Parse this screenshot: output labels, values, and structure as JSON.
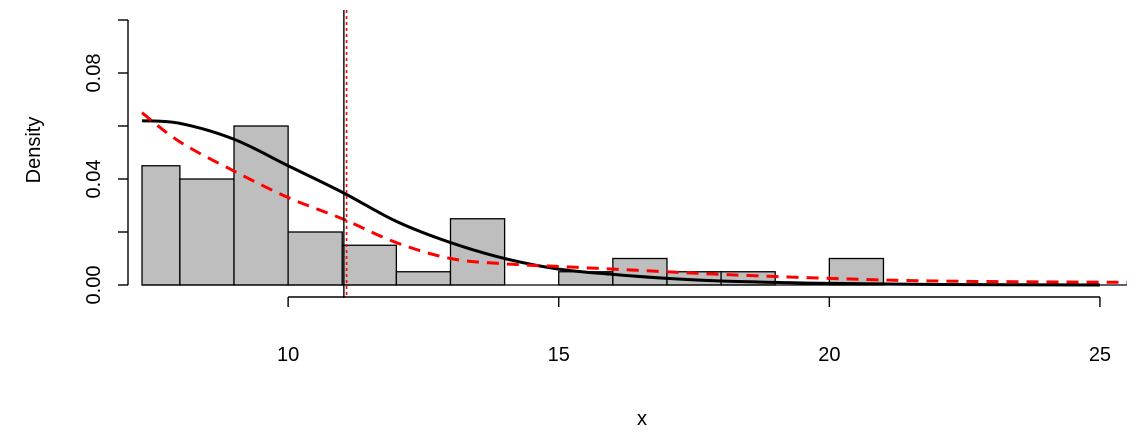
{
  "chart_data": {
    "type": "bar",
    "title": "",
    "xlabel": "x",
    "ylabel": "Density",
    "xlim": [
      7.3,
      25.5
    ],
    "ylim": [
      0,
      0.1
    ],
    "grid": false,
    "bins": [
      {
        "x0": 7.3,
        "x1": 8,
        "density": 0.045
      },
      {
        "x0": 8,
        "x1": 9,
        "density": 0.04
      },
      {
        "x0": 9,
        "x1": 10,
        "density": 0.06
      },
      {
        "x0": 10,
        "x1": 11,
        "density": 0.02
      },
      {
        "x0": 11,
        "x1": 12,
        "density": 0.015
      },
      {
        "x0": 12,
        "x1": 13,
        "density": 0.005
      },
      {
        "x0": 13,
        "x1": 14,
        "density": 0.025
      },
      {
        "x0": 14,
        "x1": 15,
        "density": 0.0
      },
      {
        "x0": 15,
        "x1": 16,
        "density": 0.005
      },
      {
        "x0": 16,
        "x1": 17,
        "density": 0.01
      },
      {
        "x0": 17,
        "x1": 18,
        "density": 0.005
      },
      {
        "x0": 18,
        "x1": 19,
        "density": 0.005
      },
      {
        "x0": 19,
        "x1": 20,
        "density": 0.0
      },
      {
        "x0": 20,
        "x1": 21,
        "density": 0.01
      }
    ],
    "bar_fill": "#bebebe",
    "series": [
      {
        "style": "solid",
        "color": "#000000",
        "x": [
          7.3,
          8,
          9,
          10,
          11,
          12,
          13,
          14,
          15,
          16,
          17,
          18,
          19,
          20,
          22,
          25
        ],
        "y": [
          0.062,
          0.061,
          0.055,
          0.045,
          0.035,
          0.024,
          0.016,
          0.01,
          0.006,
          0.004,
          0.0025,
          0.0015,
          0.001,
          0.0006,
          0.0002,
          0.0
        ]
      },
      {
        "style": "dashed",
        "color": "#ff0000",
        "x": [
          7.3,
          8,
          9,
          10,
          11,
          12,
          13,
          14,
          15,
          16,
          17,
          18,
          20,
          22,
          25.5
        ],
        "y": [
          0.065,
          0.054,
          0.043,
          0.033,
          0.025,
          0.016,
          0.01,
          0.008,
          0.007,
          0.006,
          0.005,
          0.004,
          0.0025,
          0.0015,
          0.001
        ]
      }
    ],
    "vlines": [
      {
        "x": 11.03,
        "color": "#000000",
        "style": "solid"
      },
      {
        "x": 11.08,
        "color": "#ff0000",
        "style": "dotted"
      }
    ],
    "xticks": [
      10,
      15,
      20,
      25
    ],
    "xtick_labels": [
      "10",
      "15",
      "20",
      "25"
    ],
    "yticks": [
      0.0,
      0.04,
      0.08
    ],
    "ytick_labels": [
      "0.00",
      "0.04",
      "0.08"
    ]
  }
}
